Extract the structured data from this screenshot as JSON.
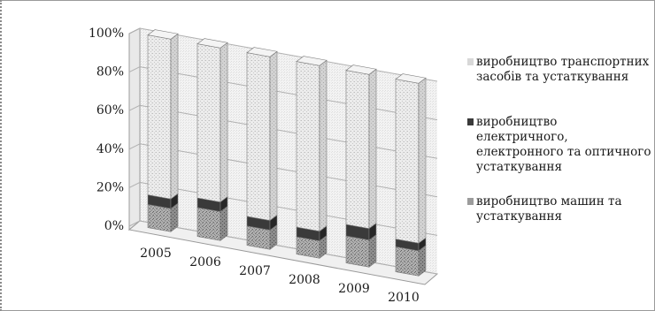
{
  "chart_data": {
    "type": "bar",
    "stacked_percent": true,
    "style": "3d-column",
    "categories": [
      "2005",
      "2006",
      "2007",
      "2008",
      "2009",
      "2010"
    ],
    "series": [
      {
        "name": "виробництво машин та устаткування",
        "values": [
          12,
          15,
          10,
          9,
          14,
          13
        ],
        "color": "#a9a9a9",
        "pattern": "speckled"
      },
      {
        "name": "виробництво електричного, електронного та оптичного устаткування",
        "values": [
          5,
          5,
          5,
          5,
          6,
          4
        ],
        "color": "#3a3a3a",
        "pattern": "solid"
      },
      {
        "name": "виробництво транспортних засобів та устаткування",
        "values": [
          83,
          80,
          85,
          86,
          80,
          83
        ],
        "color": "#e4e4e4",
        "pattern": "speckled"
      }
    ],
    "yticks": [
      "0%",
      "20%",
      "40%",
      "60%",
      "80%",
      "100%"
    ],
    "ylim": [
      0,
      100
    ],
    "grid": true,
    "legend_position": "right"
  }
}
